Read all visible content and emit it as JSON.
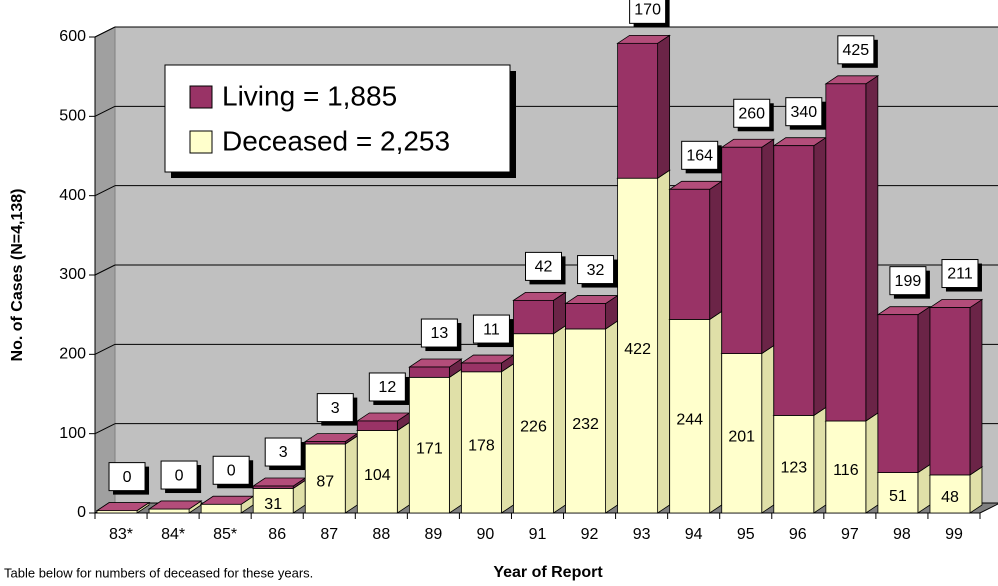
{
  "chart_data": {
    "type": "bar3d_stacked",
    "y_label": "No. of Cases (N=4,138)",
    "x_label": "Year of Report",
    "footnote": "Table below  for numbers of deceased for these years.",
    "categories": [
      "83*",
      "84*",
      "85*",
      "86",
      "87",
      "88",
      "89",
      "90",
      "91",
      "92",
      "93",
      "94",
      "95",
      "96",
      "97",
      "98",
      "99"
    ],
    "series": [
      {
        "name": "Deceased = 2,253",
        "color": "#ffffcc",
        "values": [
          3,
          5,
          11,
          31,
          87,
          104,
          171,
          178,
          226,
          232,
          422,
          244,
          201,
          123,
          116,
          51,
          48
        ],
        "value_labels": [
          null,
          null,
          null,
          "31",
          "87",
          "104",
          "171",
          "178",
          "226",
          "232",
          "422",
          "244",
          "201",
          "123",
          "116",
          "51",
          "48"
        ]
      },
      {
        "name": "Living = 1,885",
        "color": "#993366",
        "values": [
          0,
          0,
          0,
          3,
          3,
          12,
          13,
          11,
          42,
          32,
          170,
          164,
          260,
          340,
          425,
          199,
          211
        ]
      }
    ],
    "ylim": [
      0,
      600
    ],
    "yticks": [
      0,
      100,
      200,
      300,
      400,
      500,
      600
    ],
    "grid": true
  }
}
